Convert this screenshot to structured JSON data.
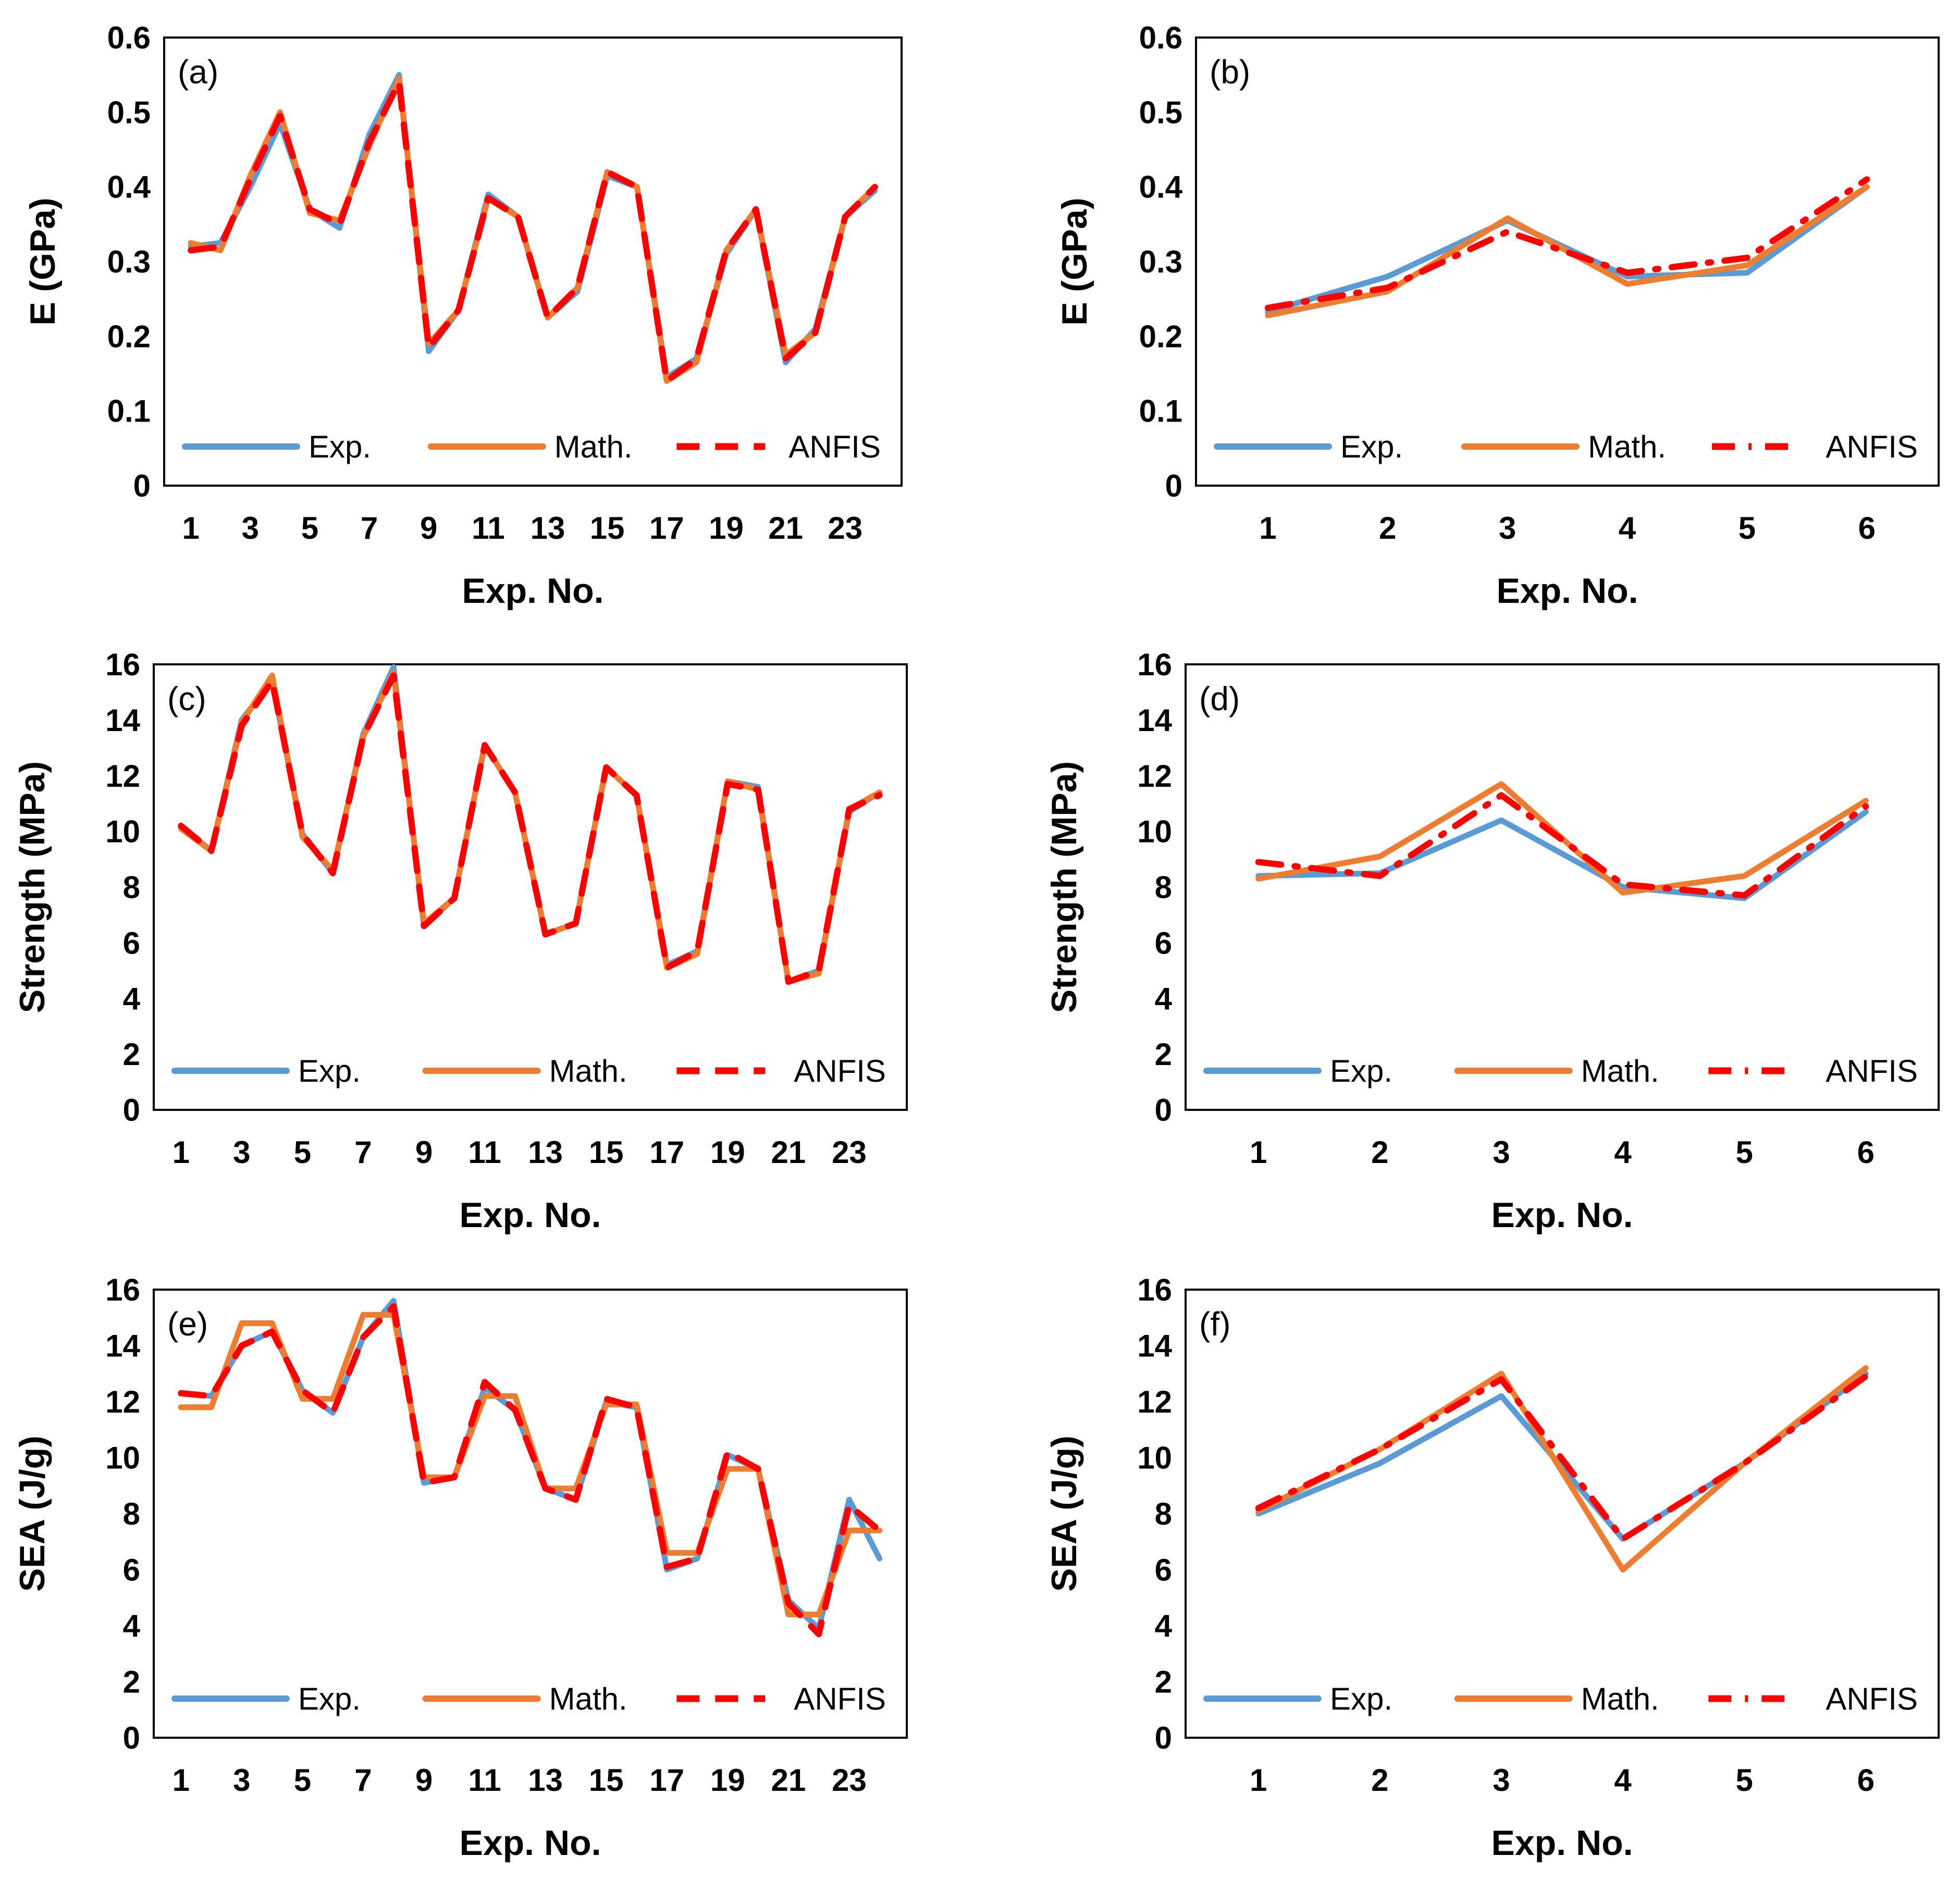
{
  "colors": {
    "exp": "#5B9BD5",
    "math": "#ED7D31",
    "anfis": "#FF0000",
    "axis": "#000000"
  },
  "chart_data": [
    {
      "id": "a",
      "type": "line",
      "panel_label": "(a)",
      "xlabel": "Exp. No.",
      "ylabel": "E (GPa)",
      "ylim": [
        0,
        0.6
      ],
      "yticks": [
        "0",
        "0.1",
        "0.2",
        "0.3",
        "0.4",
        "0.5",
        "0.6"
      ],
      "x": [
        1,
        2,
        3,
        4,
        5,
        6,
        7,
        8,
        9,
        10,
        11,
        12,
        13,
        14,
        15,
        16,
        17,
        18,
        19,
        20,
        21,
        22,
        23,
        24
      ],
      "xticks": [
        "1",
        "3",
        "5",
        "7",
        "9",
        "11",
        "13",
        "15",
        "17",
        "19",
        "21",
        "23"
      ],
      "legend_position": "bottom",
      "series": [
        {
          "name": "Exp.",
          "style": "solid",
          "color_key": "exp",
          "values": [
            0.32,
            0.325,
            0.4,
            0.485,
            0.37,
            0.345,
            0.47,
            0.55,
            0.18,
            0.235,
            0.39,
            0.36,
            0.225,
            0.26,
            0.415,
            0.4,
            0.145,
            0.17,
            0.31,
            0.37,
            0.165,
            0.21,
            0.36,
            0.395
          ]
        },
        {
          "name": "Math.",
          "style": "solid",
          "color_key": "math",
          "values": [
            0.325,
            0.315,
            0.415,
            0.5,
            0.365,
            0.355,
            0.455,
            0.545,
            0.19,
            0.235,
            0.385,
            0.36,
            0.225,
            0.265,
            0.42,
            0.4,
            0.14,
            0.165,
            0.315,
            0.37,
            0.175,
            0.205,
            0.36,
            0.4
          ]
        },
        {
          "name": "ANFIS",
          "style": "dash",
          "color_key": "anfis",
          "values": [
            0.315,
            0.32,
            0.41,
            0.495,
            0.37,
            0.35,
            0.46,
            0.54,
            0.185,
            0.235,
            0.385,
            0.36,
            0.225,
            0.265,
            0.42,
            0.4,
            0.14,
            0.17,
            0.315,
            0.37,
            0.17,
            0.205,
            0.36,
            0.4
          ]
        }
      ]
    },
    {
      "id": "b",
      "type": "line",
      "panel_label": "(b)",
      "xlabel": "Exp. No.",
      "ylabel": "E (GPa)",
      "ylim": [
        0,
        0.6
      ],
      "yticks": [
        "0",
        "0.1",
        "0.2",
        "0.3",
        "0.4",
        "0.5",
        "0.6"
      ],
      "x": [
        1,
        2,
        3,
        4,
        5,
        6
      ],
      "xticks": [
        "1",
        "2",
        "3",
        "4",
        "5",
        "6"
      ],
      "legend_position": "bottom",
      "series": [
        {
          "name": "Exp.",
          "style": "solid",
          "color_key": "exp",
          "values": [
            0.233,
            0.28,
            0.355,
            0.28,
            0.285,
            0.4
          ]
        },
        {
          "name": "Math.",
          "style": "solid",
          "color_key": "math",
          "values": [
            0.228,
            0.26,
            0.358,
            0.27,
            0.295,
            0.4
          ]
        },
        {
          "name": "ANFIS",
          "style": "dashdot",
          "color_key": "anfis",
          "values": [
            0.238,
            0.265,
            0.34,
            0.285,
            0.305,
            0.41
          ]
        }
      ]
    },
    {
      "id": "c",
      "type": "line",
      "panel_label": "(c)",
      "xlabel": "Exp. No.",
      "ylabel": "Strength (MPa)",
      "ylim": [
        0,
        16
      ],
      "yticks": [
        "0",
        "2",
        "4",
        "6",
        "8",
        "10",
        "12",
        "14",
        "16"
      ],
      "x": [
        1,
        2,
        3,
        4,
        5,
        6,
        7,
        8,
        9,
        10,
        11,
        12,
        13,
        14,
        15,
        16,
        17,
        18,
        19,
        20,
        21,
        22,
        23,
        24
      ],
      "xticks": [
        "1",
        "3",
        "5",
        "7",
        "9",
        "11",
        "13",
        "15",
        "17",
        "19",
        "21",
        "23"
      ],
      "legend_position": "bottom",
      "series": [
        {
          "name": "Exp.",
          "style": "solid",
          "color_key": "exp",
          "values": [
            10.2,
            9.3,
            14.0,
            15.4,
            9.9,
            8.5,
            13.5,
            15.9,
            6.6,
            7.6,
            13.1,
            11.4,
            6.3,
            6.7,
            12.3,
            11.3,
            5.2,
            5.7,
            11.8,
            11.6,
            4.6,
            5.0,
            10.7,
            11.4
          ]
        },
        {
          "name": "Math.",
          "style": "solid",
          "color_key": "math",
          "values": [
            10.1,
            9.3,
            13.9,
            15.6,
            9.8,
            8.6,
            13.4,
            15.7,
            6.7,
            7.6,
            13.1,
            11.4,
            6.3,
            6.7,
            12.3,
            11.3,
            5.1,
            5.6,
            11.8,
            11.5,
            4.6,
            4.9,
            10.8,
            11.4
          ]
        },
        {
          "name": "ANFIS",
          "style": "dash",
          "color_key": "anfis",
          "values": [
            10.2,
            9.3,
            13.8,
            15.4,
            9.9,
            8.5,
            13.4,
            15.6,
            6.6,
            7.6,
            13.1,
            11.4,
            6.3,
            6.7,
            12.3,
            11.3,
            5.1,
            5.7,
            11.7,
            11.5,
            4.6,
            5.0,
            10.8,
            11.3
          ]
        }
      ]
    },
    {
      "id": "d",
      "type": "line",
      "panel_label": "(d)",
      "xlabel": "Exp. No.",
      "ylabel": "Strength (MPa)",
      "ylim": [
        0,
        16
      ],
      "yticks": [
        "0",
        "2",
        "4",
        "6",
        "8",
        "10",
        "12",
        "14",
        "16"
      ],
      "x": [
        1,
        2,
        3,
        4,
        5,
        6
      ],
      "xticks": [
        "1",
        "2",
        "3",
        "4",
        "5",
        "6"
      ],
      "legend_position": "bottom",
      "series": [
        {
          "name": "Exp.",
          "style": "solid",
          "color_key": "exp",
          "values": [
            8.4,
            8.5,
            10.4,
            8.0,
            7.6,
            10.7
          ]
        },
        {
          "name": "Math.",
          "style": "solid",
          "color_key": "math",
          "values": [
            8.3,
            9.1,
            11.7,
            7.8,
            8.4,
            11.1
          ]
        },
        {
          "name": "ANFIS",
          "style": "dashdot",
          "color_key": "anfis",
          "values": [
            8.9,
            8.4,
            11.3,
            8.1,
            7.7,
            10.9
          ]
        }
      ]
    },
    {
      "id": "e",
      "type": "line",
      "panel_label": "(e)",
      "xlabel": "Exp. No.",
      "ylabel": "SEA (J/g)",
      "ylim": [
        0,
        16
      ],
      "yticks": [
        "0",
        "2",
        "4",
        "6",
        "8",
        "10",
        "12",
        "14",
        "16"
      ],
      "x": [
        1,
        2,
        3,
        4,
        5,
        6,
        7,
        8,
        9,
        10,
        11,
        12,
        13,
        14,
        15,
        16,
        17,
        18,
        19,
        20,
        21,
        22,
        23,
        24
      ],
      "xticks": [
        "1",
        "3",
        "5",
        "7",
        "9",
        "11",
        "13",
        "15",
        "17",
        "19",
        "21",
        "23"
      ],
      "legend_position": "bottom",
      "series": [
        {
          "name": "Exp.",
          "style": "solid",
          "color_key": "exp",
          "values": [
            12.3,
            12.2,
            14.0,
            14.5,
            12.4,
            11.6,
            14.3,
            15.6,
            9.1,
            9.3,
            12.5,
            11.7,
            8.9,
            8.5,
            12.0,
            11.8,
            6.0,
            6.4,
            10.1,
            9.6,
            4.9,
            3.9,
            8.5,
            6.4
          ]
        },
        {
          "name": "Math.",
          "style": "solid",
          "color_key": "math",
          "values": [
            11.8,
            11.8,
            14.8,
            14.8,
            12.1,
            12.1,
            15.1,
            15.1,
            9.3,
            9.3,
            12.2,
            12.2,
            8.9,
            8.9,
            11.9,
            11.9,
            6.6,
            6.6,
            9.6,
            9.6,
            4.4,
            4.4,
            7.4,
            7.4
          ]
        },
        {
          "name": "ANFIS",
          "style": "dash",
          "color_key": "anfis",
          "values": [
            12.3,
            12.2,
            14.0,
            14.5,
            12.4,
            11.6,
            14.3,
            15.4,
            9.1,
            9.3,
            12.7,
            11.7,
            8.9,
            8.5,
            12.1,
            11.8,
            6.1,
            6.4,
            10.2,
            9.6,
            4.8,
            3.7,
            8.3,
            7.4
          ]
        }
      ]
    },
    {
      "id": "f",
      "type": "line",
      "panel_label": "(f)",
      "xlabel": "Exp. No.",
      "ylabel": "SEA (J/g)",
      "ylim": [
        0,
        16
      ],
      "yticks": [
        "0",
        "2",
        "4",
        "6",
        "8",
        "10",
        "12",
        "14",
        "16"
      ],
      "x": [
        1,
        2,
        3,
        4,
        5,
        6
      ],
      "xticks": [
        "1",
        "2",
        "3",
        "4",
        "5",
        "6"
      ],
      "legend_position": "bottom",
      "series": [
        {
          "name": "Exp.",
          "style": "solid",
          "color_key": "exp",
          "values": [
            8.0,
            9.8,
            12.2,
            7.1,
            9.8,
            13.0
          ]
        },
        {
          "name": "Math.",
          "style": "solid",
          "color_key": "math",
          "values": [
            8.1,
            10.3,
            13.0,
            6.0,
            9.8,
            13.2
          ]
        },
        {
          "name": "ANFIS",
          "style": "dashdot",
          "color_key": "anfis",
          "values": [
            8.2,
            10.3,
            12.8,
            7.1,
            9.8,
            12.9
          ]
        }
      ]
    }
  ]
}
